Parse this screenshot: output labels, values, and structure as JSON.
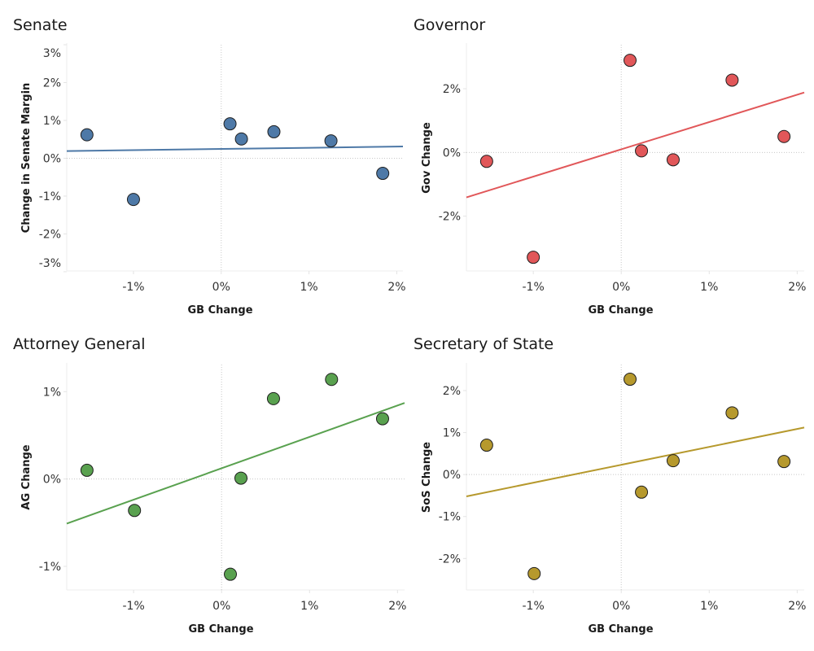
{
  "chart_data": [
    {
      "id": "senate",
      "type": "scatter",
      "title": "Senate",
      "xlabel": "GB Change",
      "ylabel": "Change in Senate Margin",
      "color": "#4e79a7",
      "xlim": [
        -1.76,
        2.07
      ],
      "ylim": [
        -2.98,
        3.0
      ],
      "xticks": [
        -1,
        0,
        1,
        2
      ],
      "xtick_labels": [
        "-1%",
        "0%",
        "1%",
        "2%"
      ],
      "yticks": [
        3,
        2,
        1,
        0,
        -1,
        -2,
        -3
      ],
      "ytick_labels": [
        "3%",
        "2%",
        "1%",
        "0%",
        "-1%",
        "-2%",
        "-3%"
      ],
      "grid": "zero-lines-dotted",
      "points": [
        {
          "x": -1.53,
          "y": 0.62
        },
        {
          "x": -1.0,
          "y": -1.09
        },
        {
          "x": 0.1,
          "y": 0.91
        },
        {
          "x": 0.23,
          "y": 0.51
        },
        {
          "x": 0.6,
          "y": 0.7
        },
        {
          "x": 1.25,
          "y": 0.46
        },
        {
          "x": 1.84,
          "y": -0.4
        }
      ],
      "trend_line": {
        "x": [
          -1.76,
          2.07
        ],
        "y": [
          0.19,
          0.31
        ]
      }
    },
    {
      "id": "governor",
      "type": "scatter",
      "title": "Governor",
      "xlabel": "GB Change",
      "ylabel": "Gov Change",
      "color": "#e15759",
      "xlim": [
        -1.76,
        2.08
      ],
      "ylim": [
        -3.72,
        3.38
      ],
      "xticks": [
        -1,
        0,
        1,
        2
      ],
      "xtick_labels": [
        "-1%",
        "0%",
        "1%",
        "2%"
      ],
      "yticks": [
        2,
        0,
        -2
      ],
      "ytick_labels": [
        "2%",
        "0%",
        "-2%"
      ],
      "grid": "zero-lines-dotted",
      "points": [
        {
          "x": -1.53,
          "y": -0.28
        },
        {
          "x": -1.0,
          "y": -3.29
        },
        {
          "x": 0.1,
          "y": 2.89
        },
        {
          "x": 0.23,
          "y": 0.05
        },
        {
          "x": 0.59,
          "y": -0.23
        },
        {
          "x": 1.26,
          "y": 2.27
        },
        {
          "x": 1.85,
          "y": 0.5
        }
      ],
      "trend_line": {
        "x": [
          -1.76,
          2.08
        ],
        "y": [
          -1.41,
          1.88
        ]
      }
    },
    {
      "id": "attorney-general",
      "type": "scatter",
      "title": "Attorney General",
      "xlabel": "GB Change",
      "ylabel": "AG Change",
      "color": "#59a14f",
      "xlim": [
        -1.76,
        2.08
      ],
      "ylim": [
        -1.27,
        1.31
      ],
      "xticks": [
        -1,
        0,
        1,
        2
      ],
      "xtick_labels": [
        "-1%",
        "0%",
        "1%",
        "2%"
      ],
      "yticks": [
        1,
        0,
        -1
      ],
      "ytick_labels": [
        "1%",
        "0%",
        "-1%"
      ],
      "grid": "zero-lines-dotted",
      "points": [
        {
          "x": -1.53,
          "y": 0.1
        },
        {
          "x": -0.99,
          "y": -0.36
        },
        {
          "x": 0.1,
          "y": -1.09
        },
        {
          "x": 0.22,
          "y": 0.01
        },
        {
          "x": 0.59,
          "y": 0.92
        },
        {
          "x": 1.25,
          "y": 1.14
        },
        {
          "x": 1.83,
          "y": 0.69
        }
      ],
      "trend_line": {
        "x": [
          -1.76,
          2.08
        ],
        "y": [
          -0.51,
          0.87
        ]
      }
    },
    {
      "id": "secretary-of-state",
      "type": "scatter",
      "title": "Secretary of State",
      "xlabel": "GB Change",
      "ylabel": "SoS Change",
      "color": "#b6992d",
      "xlim": [
        -1.76,
        2.08
      ],
      "ylim": [
        -2.75,
        2.62
      ],
      "xticks": [
        -1,
        0,
        1,
        2
      ],
      "xtick_labels": [
        "-1%",
        "0%",
        "1%",
        "2%"
      ],
      "yticks": [
        2,
        1,
        0,
        -1,
        -2
      ],
      "ytick_labels": [
        "2%",
        "1%",
        "0%",
        "-1%",
        "-2%"
      ],
      "grid": "zero-lines-dotted",
      "points": [
        {
          "x": -1.53,
          "y": 0.7
        },
        {
          "x": -0.99,
          "y": -2.36
        },
        {
          "x": 0.1,
          "y": 2.27
        },
        {
          "x": 0.23,
          "y": -0.42
        },
        {
          "x": 0.59,
          "y": 0.33
        },
        {
          "x": 1.26,
          "y": 1.47
        },
        {
          "x": 1.85,
          "y": 0.31
        }
      ],
      "trend_line": {
        "x": [
          -1.76,
          2.08
        ],
        "y": [
          -0.52,
          1.12
        ]
      }
    }
  ]
}
